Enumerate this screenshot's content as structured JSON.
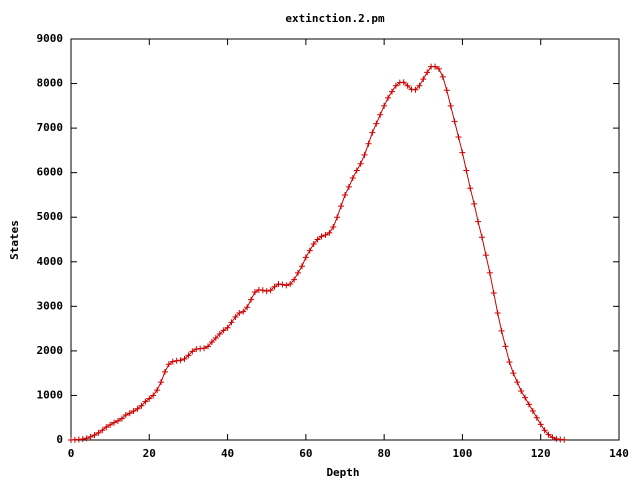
{
  "chart_data": {
    "type": "line",
    "title": "extinction.2.pm",
    "xlabel": "Depth",
    "ylabel": "States",
    "x": [
      0,
      1,
      2,
      3,
      4,
      5,
      6,
      7,
      8,
      9,
      10,
      11,
      12,
      13,
      14,
      15,
      16,
      17,
      18,
      19,
      20,
      21,
      22,
      23,
      24,
      25,
      26,
      27,
      28,
      29,
      30,
      31,
      32,
      33,
      34,
      35,
      36,
      37,
      38,
      39,
      40,
      41,
      42,
      43,
      44,
      45,
      46,
      47,
      48,
      49,
      50,
      51,
      52,
      53,
      54,
      55,
      56,
      57,
      58,
      59,
      60,
      61,
      62,
      63,
      64,
      65,
      66,
      67,
      68,
      69,
      70,
      71,
      72,
      73,
      74,
      75,
      76,
      77,
      78,
      79,
      80,
      81,
      82,
      83,
      84,
      85,
      86,
      87,
      88,
      89,
      90,
      91,
      92,
      93,
      94,
      95,
      96,
      97,
      98,
      99,
      100,
      101,
      102,
      103,
      104,
      105,
      106,
      107,
      108,
      109,
      110,
      111,
      112,
      113,
      114,
      115,
      116,
      117,
      118,
      119,
      120,
      121,
      122,
      123,
      124,
      125,
      126
    ],
    "values": [
      0,
      5,
      10,
      20,
      40,
      70,
      110,
      160,
      220,
      290,
      340,
      390,
      430,
      480,
      560,
      600,
      650,
      700,
      770,
      860,
      930,
      1000,
      1120,
      1300,
      1530,
      1700,
      1760,
      1780,
      1790,
      1820,
      1900,
      1990,
      2040,
      2050,
      2060,
      2100,
      2200,
      2290,
      2380,
      2460,
      2520,
      2640,
      2760,
      2850,
      2880,
      2980,
      3150,
      3320,
      3370,
      3360,
      3340,
      3360,
      3440,
      3500,
      3490,
      3470,
      3500,
      3600,
      3750,
      3900,
      4100,
      4250,
      4400,
      4500,
      4570,
      4600,
      4650,
      4780,
      5000,
      5250,
      5500,
      5680,
      5880,
      6050,
      6200,
      6400,
      6650,
      6900,
      7100,
      7300,
      7500,
      7680,
      7820,
      7950,
      8020,
      8030,
      7950,
      7870,
      7860,
      7950,
      8100,
      8250,
      8380,
      8380,
      8330,
      8150,
      7850,
      7500,
      7150,
      6800,
      6450,
      6050,
      5650,
      5300,
      4900,
      4550,
      4150,
      3750,
      3300,
      2850,
      2450,
      2100,
      1750,
      1500,
      1300,
      1100,
      950,
      800,
      650,
      500,
      350,
      220,
      120,
      60,
      25,
      10,
      5
    ],
    "color": "#cc0000",
    "marker": "+",
    "xlim": [
      0,
      140
    ],
    "xticks": [
      0,
      20,
      40,
      60,
      80,
      100,
      120,
      140
    ],
    "ylim": [
      0,
      9000
    ],
    "yticks": [
      0,
      1000,
      2000,
      3000,
      4000,
      5000,
      6000,
      7000,
      8000,
      9000
    ],
    "grid": false
  }
}
